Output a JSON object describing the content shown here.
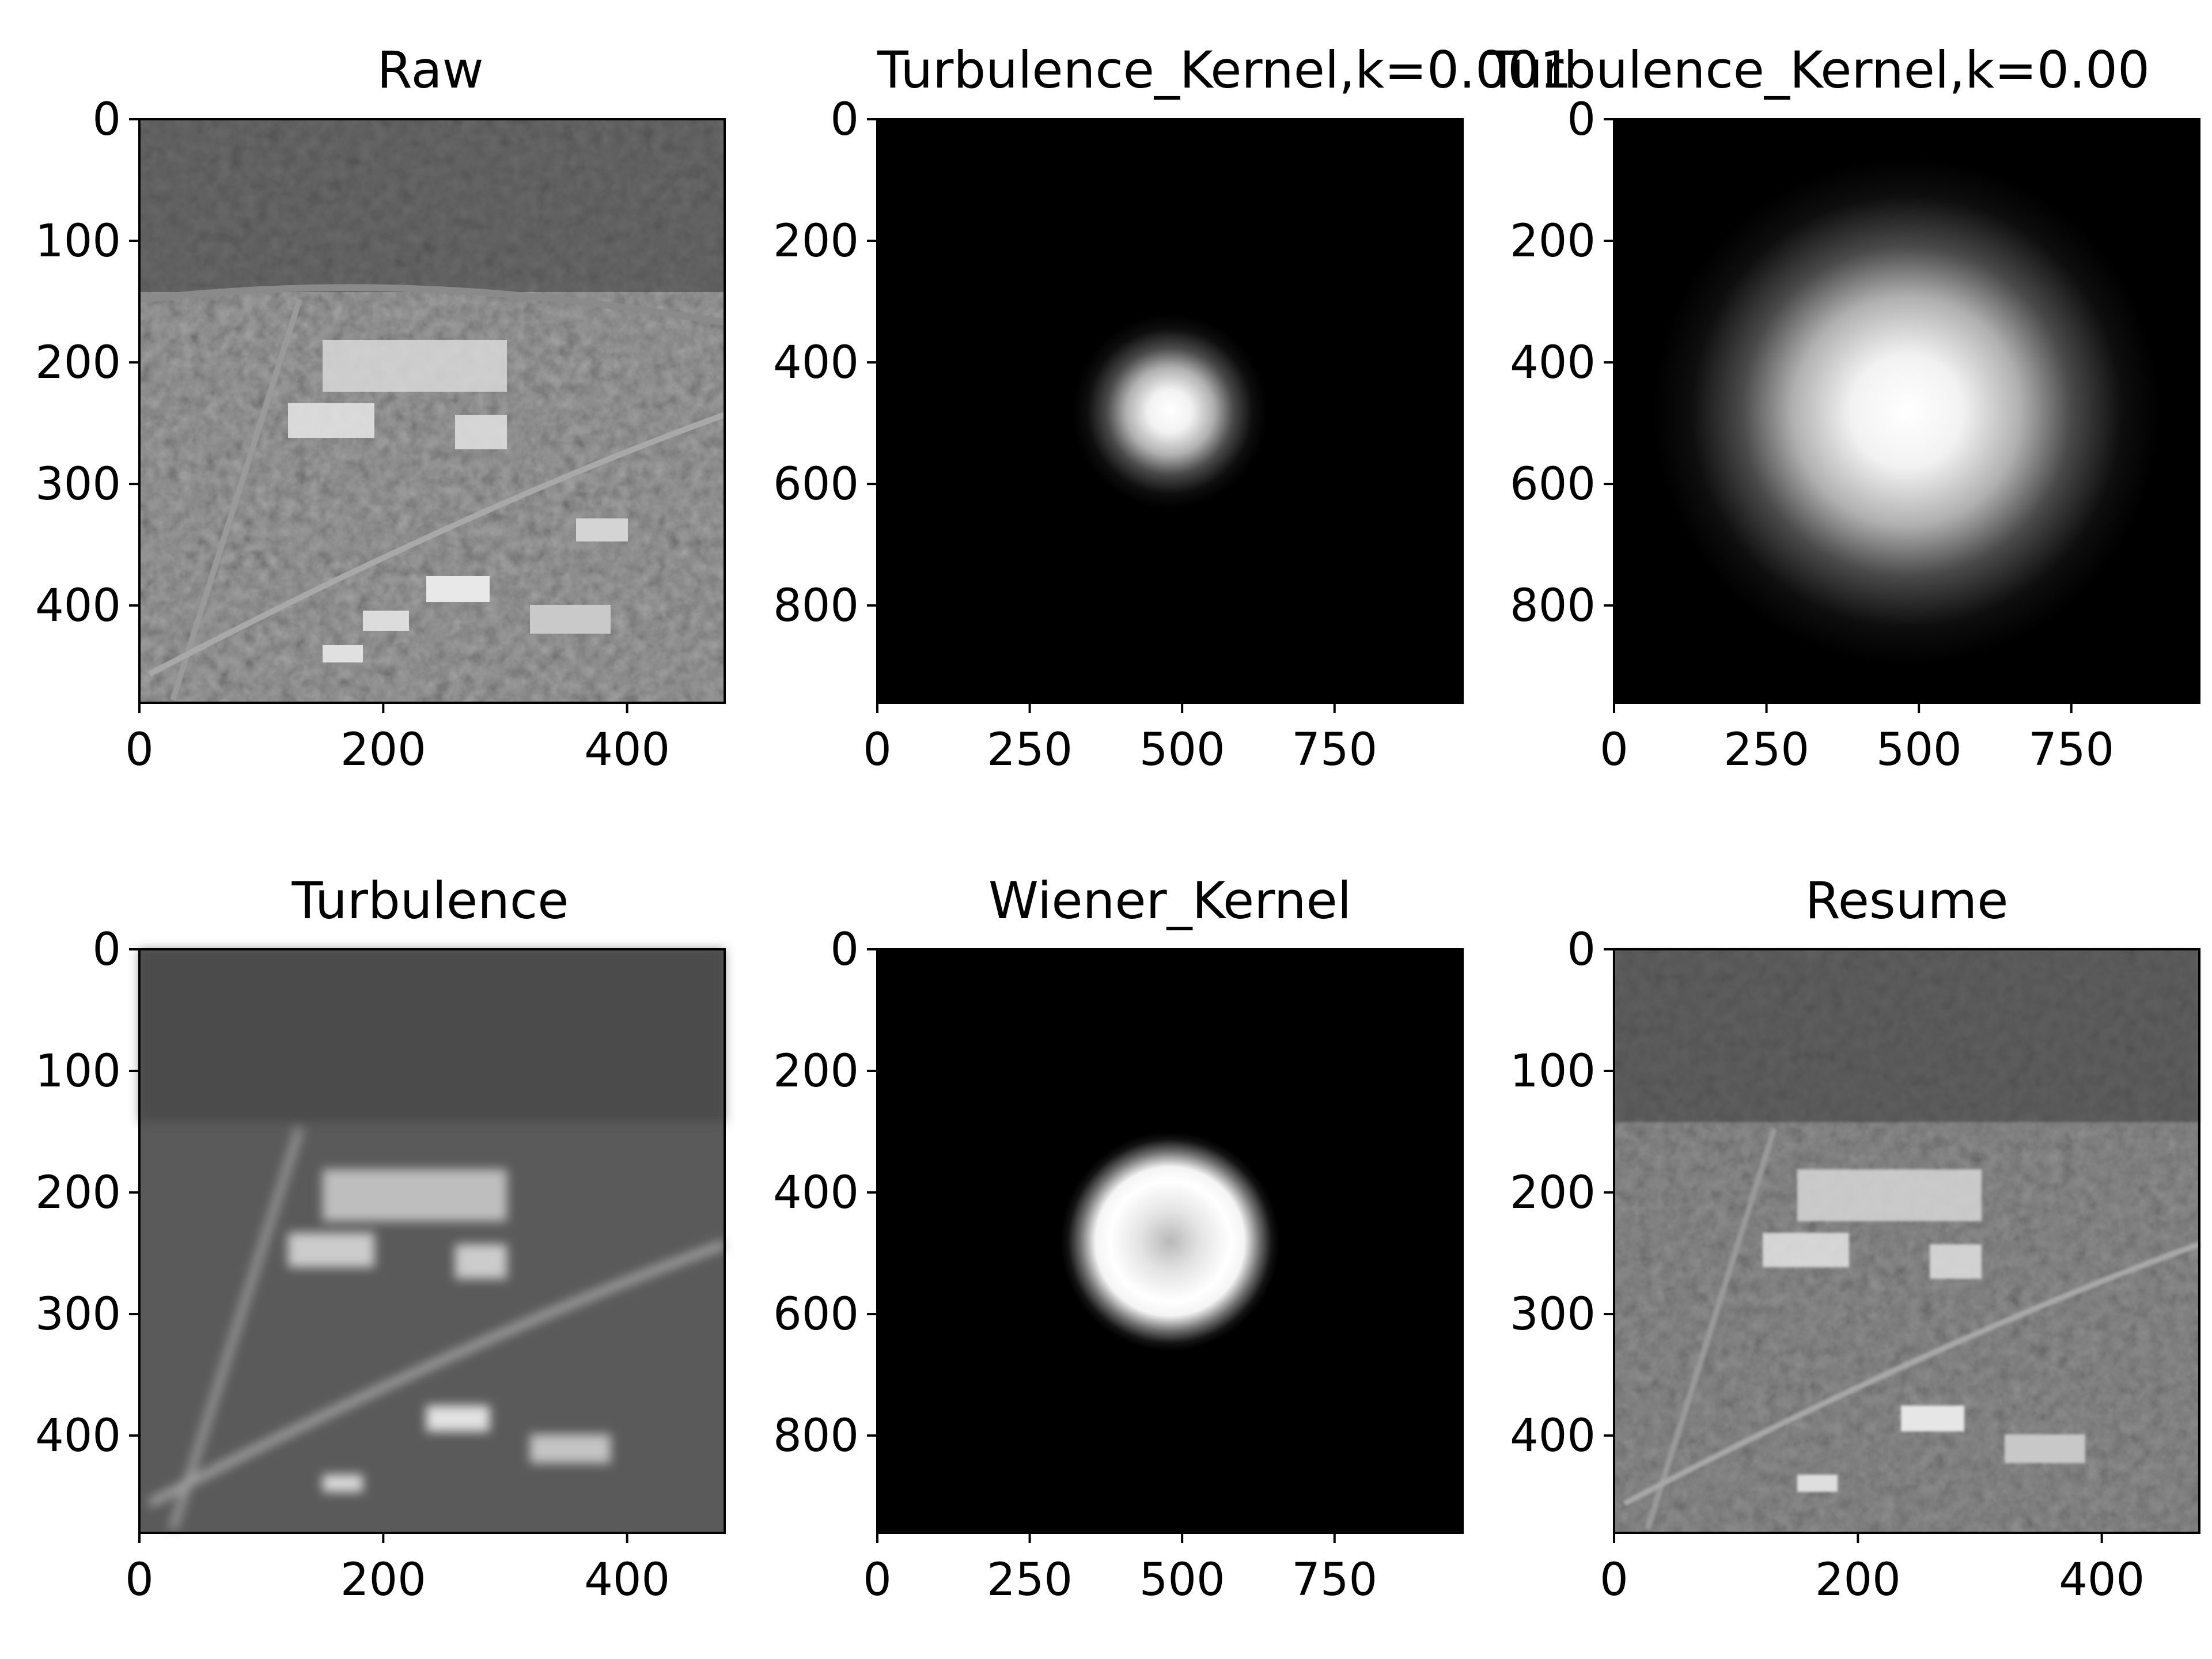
{
  "chart_data": [
    {
      "type": "image",
      "title": "Raw",
      "image": "aerial-photo",
      "colormap": "gray",
      "xlim": [
        0,
        480
      ],
      "ylim": [
        480,
        0
      ],
      "xticks": [
        0,
        200,
        400
      ],
      "yticks": [
        0,
        100,
        200,
        300,
        400
      ],
      "xticklabels": [
        "0",
        "200",
        "400"
      ],
      "yticklabels": [
        "0",
        "100",
        "200",
        "300",
        "400"
      ]
    },
    {
      "type": "image",
      "title": "Turbulence_Kernel,k=0.001",
      "image": "gaussian-blob",
      "colormap": "gray",
      "blob_center": [
        480,
        480
      ],
      "blob_radius": 160,
      "xlim": [
        0,
        960
      ],
      "ylim": [
        960,
        0
      ],
      "xticks": [
        0,
        250,
        500,
        750
      ],
      "yticks": [
        0,
        200,
        400,
        600,
        800
      ],
      "xticklabels": [
        "0",
        "250",
        "500",
        "750"
      ],
      "yticklabels": [
        "0",
        "200",
        "400",
        "600",
        "800"
      ]
    },
    {
      "type": "image",
      "title": "Turbulence_Kernel,k=0.00",
      "image": "gaussian-blob",
      "colormap": "gray",
      "blob_center": [
        480,
        480
      ],
      "blob_radius": 420,
      "xlim": [
        0,
        960
      ],
      "ylim": [
        960,
        0
      ],
      "xticks": [
        0,
        250,
        500,
        750
      ],
      "yticks": [
        0,
        200,
        400,
        600,
        800
      ],
      "xticklabels": [
        "0",
        "250",
        "500",
        "750"
      ],
      "yticklabels": [
        "0",
        "200",
        "400",
        "600",
        "800"
      ]
    },
    {
      "type": "image",
      "title": "Turbulence",
      "image": "blurred-aerial-photo",
      "colormap": "gray",
      "xlim": [
        0,
        480
      ],
      "ylim": [
        480,
        0
      ],
      "xticks": [
        0,
        200,
        400
      ],
      "yticks": [
        0,
        100,
        200,
        300,
        400
      ],
      "xticklabels": [
        "0",
        "200",
        "400"
      ],
      "yticklabels": [
        "0",
        "100",
        "200",
        "300",
        "400"
      ]
    },
    {
      "type": "image",
      "title": "Wiener_Kernel",
      "image": "ring-blob",
      "colormap": "gray",
      "blob_center": [
        480,
        480
      ],
      "blob_radius": 230,
      "xlim": [
        0,
        960
      ],
      "ylim": [
        960,
        0
      ],
      "xticks": [
        0,
        250,
        500,
        750
      ],
      "yticks": [
        0,
        200,
        400,
        600,
        800
      ],
      "xticklabels": [
        "0",
        "250",
        "500",
        "750"
      ],
      "yticklabels": [
        "0",
        "200",
        "400",
        "600",
        "800"
      ]
    },
    {
      "type": "image",
      "title": "Resume",
      "image": "restored-aerial-photo",
      "colormap": "gray",
      "xlim": [
        0,
        480
      ],
      "ylim": [
        480,
        0
      ],
      "xticks": [
        0,
        200,
        400
      ],
      "yticks": [
        0,
        100,
        200,
        300,
        400
      ],
      "xticklabels": [
        "0",
        "200",
        "400"
      ],
      "yticklabels": [
        "0",
        "100",
        "200",
        "300",
        "400"
      ]
    }
  ]
}
